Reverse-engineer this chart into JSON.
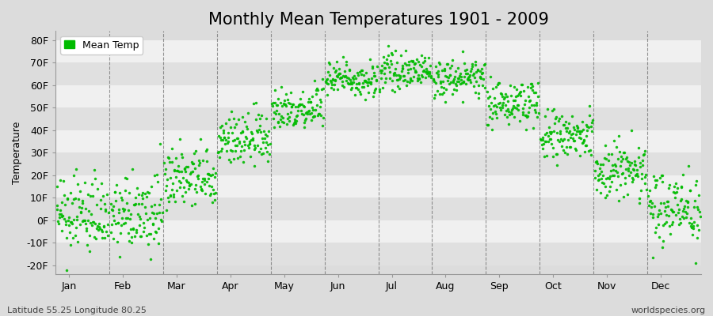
{
  "title": "Monthly Mean Temperatures 1901 - 2009",
  "ylabel": "Temperature",
  "xlabel_bottom_left": "Latitude 55.25 Longitude 80.25",
  "xlabel_bottom_right": "worldspecies.org",
  "legend_label": "Mean Temp",
  "dot_color": "#00BB00",
  "background_color": "#DCDCDC",
  "band_color_light": "#F0F0F0",
  "band_color_dark": "#E0E0E0",
  "yticks": [
    -20,
    -10,
    0,
    10,
    20,
    30,
    40,
    50,
    60,
    70,
    80
  ],
  "ytick_labels": [
    "-20F",
    "-10F",
    "0F",
    "10F",
    "20F",
    "30F",
    "40F",
    "50F",
    "60F",
    "70F",
    "80F"
  ],
  "ylim": [
    -24,
    84
  ],
  "months": [
    "Jan",
    "Feb",
    "Mar",
    "Apr",
    "May",
    "Jun",
    "Jul",
    "Aug",
    "Sep",
    "Oct",
    "Nov",
    "Dec"
  ],
  "month_mean_temps_F": {
    "Jan": 2.0,
    "Feb": 2.0,
    "Mar": 18.0,
    "Apr": 36.0,
    "May": 50.0,
    "Jun": 63.0,
    "Jul": 66.0,
    "Aug": 63.0,
    "Sep": 52.0,
    "Oct": 37.0,
    "Nov": 22.0,
    "Dec": 6.0
  },
  "month_std_temps_F": {
    "Jan": 8.0,
    "Feb": 8.0,
    "Mar": 7.0,
    "Apr": 6.0,
    "May": 5.0,
    "Jun": 4.0,
    "Jul": 3.5,
    "Aug": 4.0,
    "Sep": 5.0,
    "Oct": 6.0,
    "Nov": 7.0,
    "Dec": 8.0
  },
  "n_years": 109,
  "title_fontsize": 15,
  "axis_label_fontsize": 9,
  "tick_fontsize": 9,
  "legend_fontsize": 9,
  "marker_size": 2.5
}
